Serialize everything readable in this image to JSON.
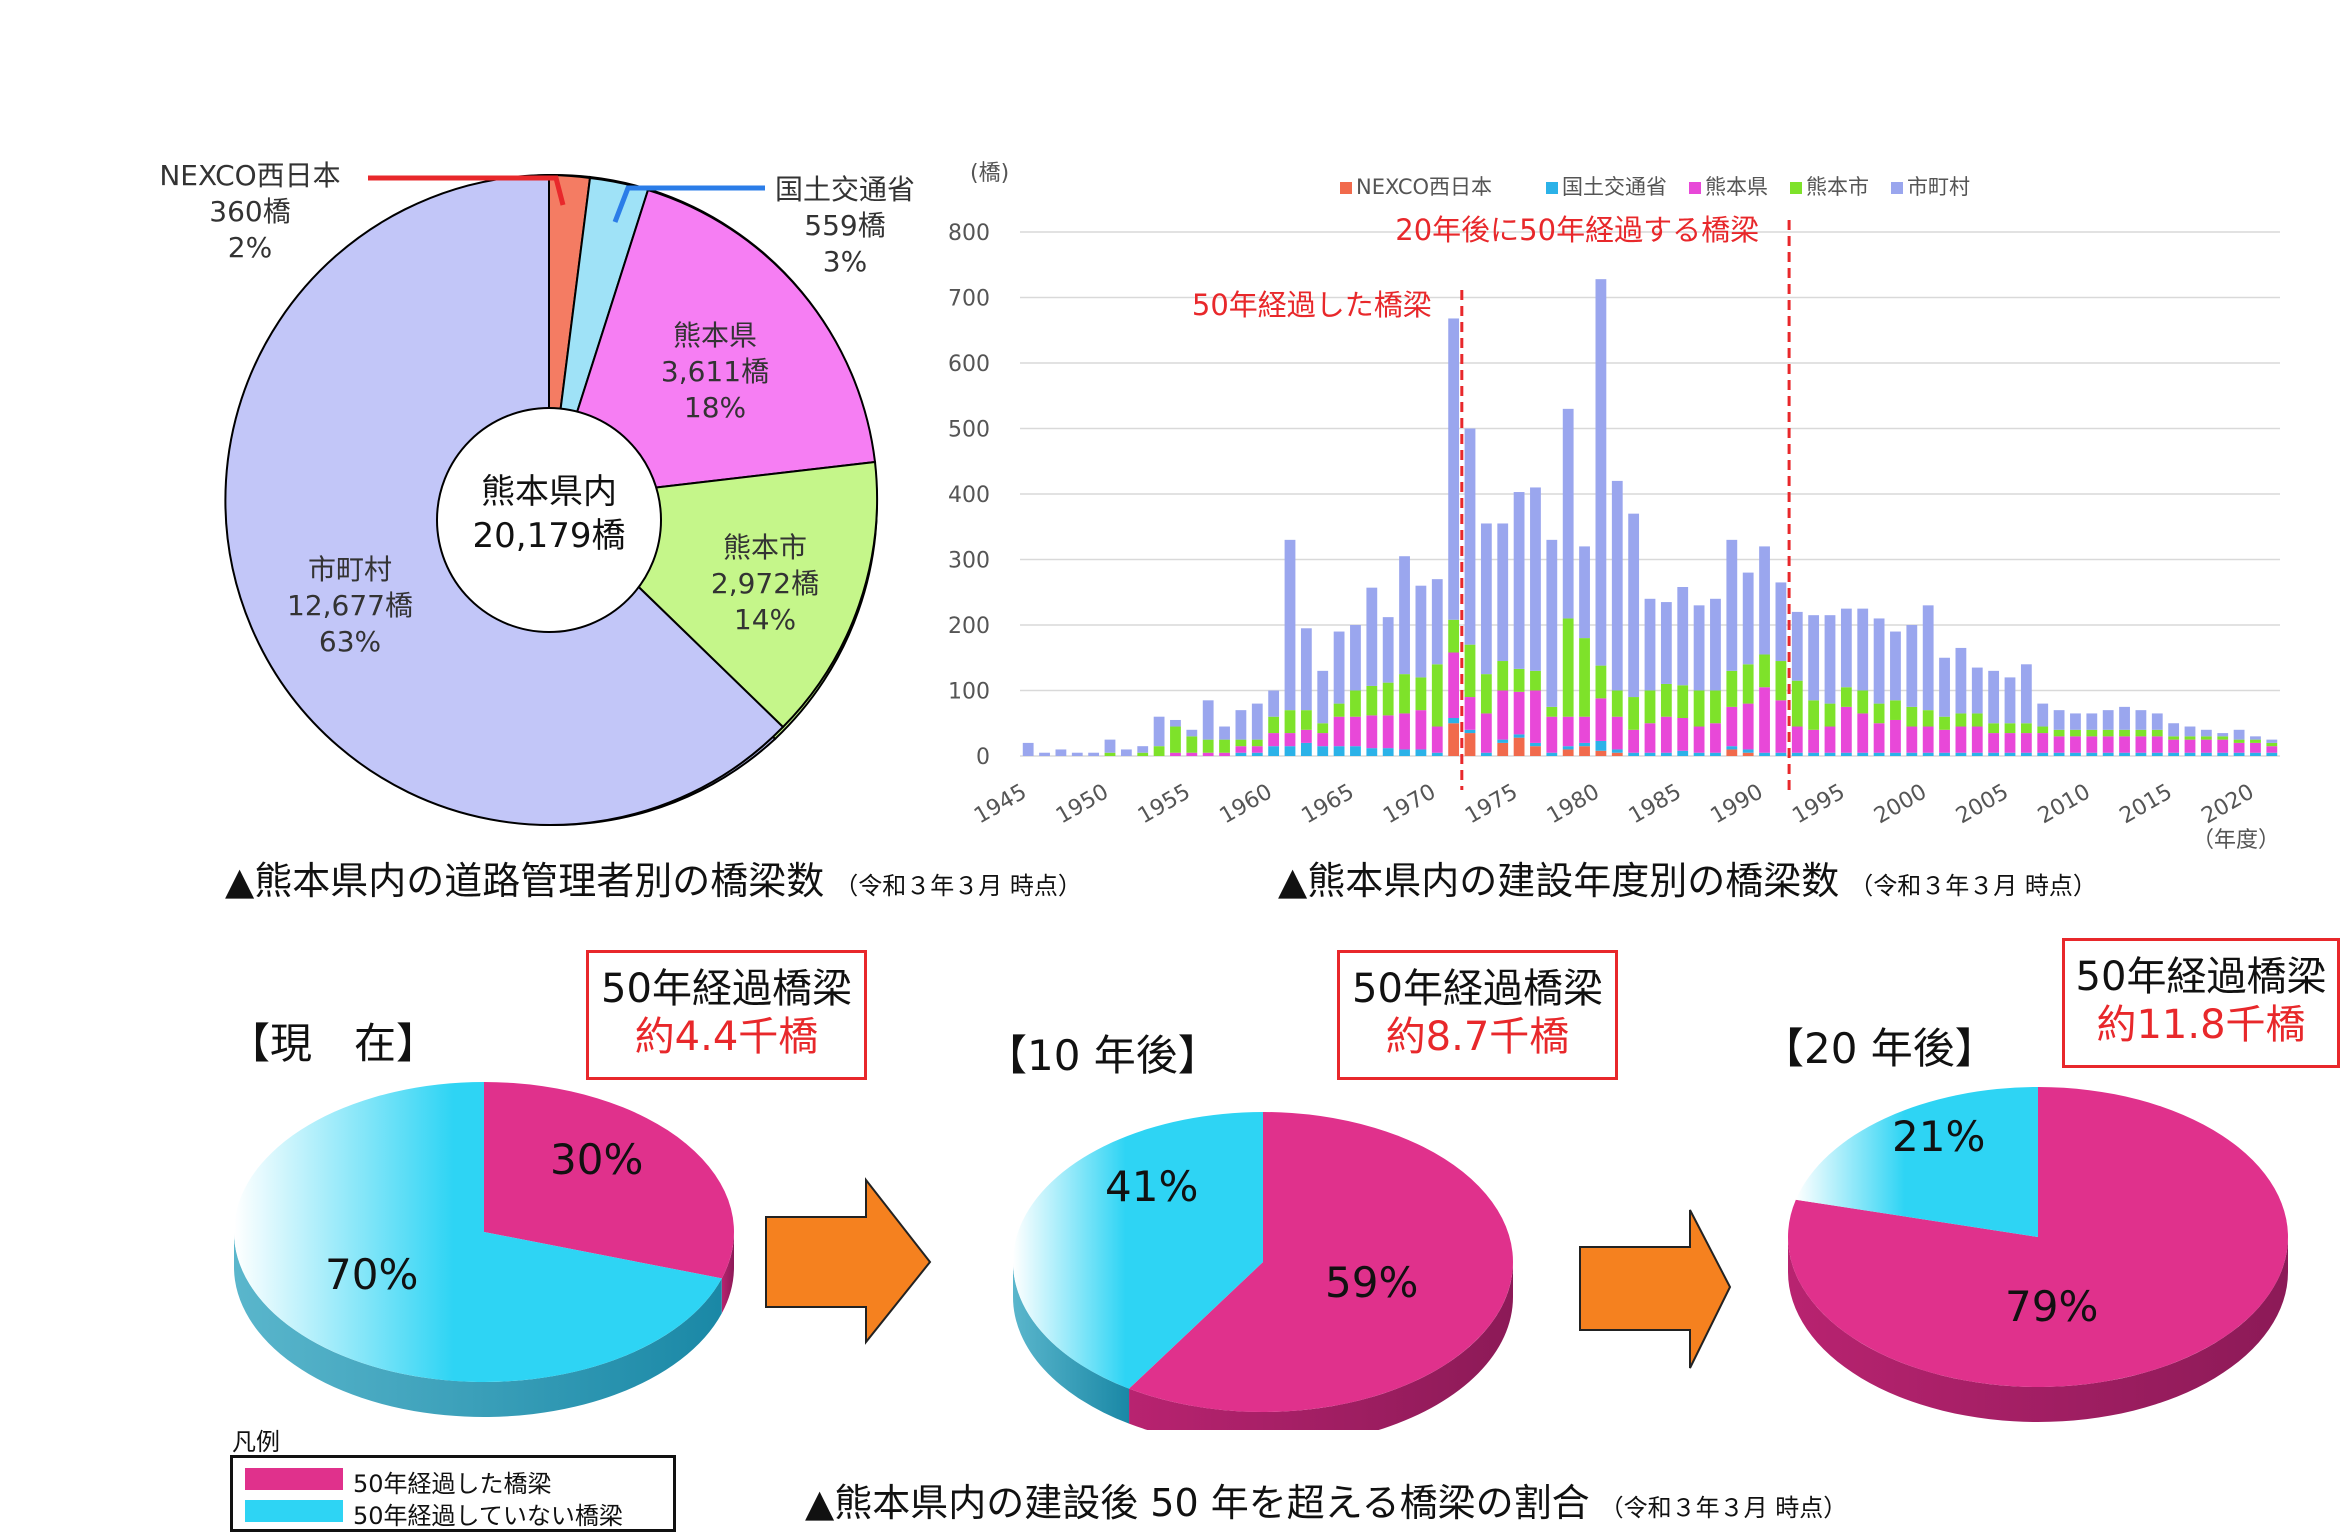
{
  "colors": {
    "nexco": "#f16a4c",
    "mlit": "#2bb2e8",
    "pref": "#e848d8",
    "city": "#7ee22a",
    "town": "#9aa6ee",
    "donut_nexco": "#f47c63",
    "donut_mlit": "#9fe2f7",
    "donut_pref": "#f67ef3",
    "donut_city": "#c5f68a",
    "donut_town": "#c2c6f8",
    "over50": "#e0318c",
    "under50": "#2ed4f4",
    "red": "#e8282b",
    "arrow": "#f5811f"
  },
  "donut": {
    "center_line1": "熊本県内",
    "center_line2": "20,179橋",
    "segments": [
      {
        "name": "NEXCO西日本",
        "count": "360橋",
        "pct": "2%"
      },
      {
        "name": "国土交通省",
        "count": "559橋",
        "pct": "3%"
      },
      {
        "name": "熊本県",
        "count": "3,611橋",
        "pct": "18%"
      },
      {
        "name": "熊本市",
        "count": "2,972橋",
        "pct": "14%"
      },
      {
        "name": "市町村",
        "count": "12,677橋",
        "pct": "63%"
      }
    ],
    "caption": "▲熊本県内の道路管理者別の橋梁数",
    "caption_note": "（令和３年３月 時点）"
  },
  "bar_caption": "▲熊本県内の建設年度別の橋梁数",
  "bar_caption_note": "（令和３年３月 時点）",
  "chart_data": {
    "type": "bar",
    "stacked": true,
    "y_unit": "(橋)",
    "x_unit": "（年度）",
    "ylim": [
      0,
      800
    ],
    "yticks": [
      0,
      100,
      200,
      300,
      400,
      500,
      600,
      700,
      800
    ],
    "xticks": [
      1945,
      1950,
      1955,
      1960,
      1965,
      1970,
      1975,
      1980,
      1985,
      1990,
      1995,
      2000,
      2005,
      2010,
      2015,
      2020
    ],
    "grid": true,
    "legend_position": "top",
    "annotations": [
      {
        "text": "50年経過した橋梁",
        "after_year": 1971
      },
      {
        "text": "20年後に50年経過する橋梁",
        "after_year": 1991
      }
    ],
    "categories": [
      1945,
      1946,
      1947,
      1948,
      1949,
      1950,
      1951,
      1952,
      1953,
      1954,
      1955,
      1956,
      1957,
      1958,
      1959,
      1960,
      1961,
      1962,
      1963,
      1964,
      1965,
      1966,
      1967,
      1968,
      1969,
      1970,
      1971,
      1972,
      1973,
      1974,
      1975,
      1976,
      1977,
      1978,
      1979,
      1980,
      1981,
      1982,
      1983,
      1984,
      1985,
      1986,
      1987,
      1988,
      1989,
      1990,
      1991,
      1992,
      1993,
      1994,
      1995,
      1996,
      1997,
      1998,
      1999,
      2000,
      2001,
      2002,
      2003,
      2004,
      2005,
      2006,
      2007,
      2008,
      2009,
      2010,
      2011,
      2012,
      2013,
      2014,
      2015,
      2016,
      2017,
      2018,
      2019,
      2020,
      2021
    ],
    "series": [
      {
        "name": "NEXCO西日本",
        "values": [
          0,
          0,
          0,
          0,
          0,
          0,
          0,
          0,
          0,
          0,
          0,
          0,
          0,
          0,
          0,
          0,
          0,
          0,
          0,
          0,
          0,
          0,
          0,
          0,
          0,
          0,
          50,
          35,
          0,
          20,
          28,
          15,
          0,
          10,
          15,
          8,
          5,
          0,
          0,
          0,
          0,
          0,
          0,
          10,
          5,
          0,
          0,
          0,
          0,
          0,
          0,
          0,
          0,
          0,
          0,
          0,
          0,
          0,
          0,
          0,
          0,
          0,
          0,
          0,
          0,
          0,
          0,
          0,
          0,
          0,
          0,
          0,
          0,
          0,
          0,
          0,
          0
        ]
      },
      {
        "name": "国土交通省",
        "values": [
          0,
          0,
          0,
          0,
          0,
          0,
          0,
          0,
          0,
          0,
          0,
          0,
          0,
          5,
          5,
          15,
          15,
          20,
          15,
          15,
          15,
          12,
          12,
          10,
          10,
          5,
          8,
          5,
          5,
          5,
          5,
          5,
          5,
          5,
          5,
          15,
          5,
          5,
          5,
          5,
          8,
          5,
          5,
          5,
          5,
          5,
          5,
          5,
          5,
          5,
          5,
          5,
          5,
          5,
          5,
          5,
          5,
          5,
          5,
          5,
          5,
          5,
          5,
          5,
          5,
          5,
          5,
          5,
          5,
          5,
          5,
          5,
          5,
          5,
          5,
          5,
          5
        ]
      },
      {
        "name": "熊本県",
        "values": [
          0,
          0,
          0,
          0,
          0,
          0,
          0,
          0,
          0,
          5,
          5,
          5,
          5,
          10,
          10,
          20,
          20,
          20,
          20,
          45,
          45,
          50,
          50,
          55,
          60,
          40,
          100,
          50,
          60,
          75,
          65,
          80,
          55,
          45,
          40,
          65,
          50,
          35,
          45,
          55,
          50,
          40,
          45,
          60,
          70,
          100,
          80,
          40,
          35,
          40,
          70,
          60,
          45,
          50,
          40,
          40,
          35,
          40,
          40,
          30,
          30,
          30,
          30,
          25,
          25,
          25,
          25,
          25,
          25,
          25,
          20,
          20,
          20,
          20,
          15,
          15,
          10
        ]
      },
      {
        "name": "熊本市",
        "values": [
          0,
          0,
          0,
          0,
          0,
          5,
          0,
          5,
          15,
          40,
          25,
          20,
          20,
          10,
          10,
          25,
          35,
          30,
          15,
          20,
          40,
          45,
          50,
          60,
          50,
          95,
          50,
          80,
          60,
          45,
          35,
          30,
          15,
          150,
          120,
          50,
          40,
          50,
          50,
          50,
          50,
          55,
          50,
          55,
          60,
          50,
          60,
          70,
          45,
          35,
          30,
          35,
          30,
          30,
          30,
          25,
          20,
          20,
          20,
          15,
          15,
          15,
          10,
          10,
          10,
          10,
          10,
          10,
          10,
          10,
          5,
          5,
          5,
          5,
          5,
          5,
          5
        ]
      },
      {
        "name": "市町村",
        "values": [
          20,
          5,
          10,
          5,
          5,
          20,
          10,
          10,
          45,
          10,
          10,
          60,
          20,
          45,
          55,
          40,
          260,
          125,
          80,
          110,
          100,
          150,
          100,
          180,
          140,
          130,
          460,
          330,
          230,
          210,
          270,
          280,
          255,
          320,
          140,
          590,
          320,
          280,
          140,
          125,
          150,
          130,
          140,
          200,
          140,
          165,
          120,
          105,
          130,
          135,
          120,
          125,
          130,
          105,
          125,
          160,
          90,
          100,
          70,
          80,
          70,
          90,
          35,
          30,
          25,
          25,
          30,
          35,
          30,
          25,
          20,
          15,
          10,
          5,
          15,
          5,
          5
        ]
      }
    ]
  },
  "pies": [
    {
      "label": "【現　在】",
      "box_line1": "50年経過橋梁",
      "box_line2": "約4.4千橋",
      "over_pct": "30%",
      "under_pct": "70%",
      "over": 30
    },
    {
      "label": "【10 年後】",
      "box_line1": "50年経過橋梁",
      "box_line2": "約8.7千橋",
      "over_pct": "59%",
      "under_pct": "41%",
      "over": 59
    },
    {
      "label": "【20 年後】",
      "box_line1": "50年経過橋梁",
      "box_line2": "約11.8千橋",
      "over_pct": "79%",
      "under_pct": "21%",
      "over": 79
    }
  ],
  "legend": {
    "title": "凡例",
    "over50": "50年経過した橋梁",
    "under50": "50年経過していない橋梁"
  },
  "pie_caption": "▲熊本県内の建設後 50 年を超える橋梁の割合",
  "pie_caption_note": "（令和３年３月 時点）"
}
